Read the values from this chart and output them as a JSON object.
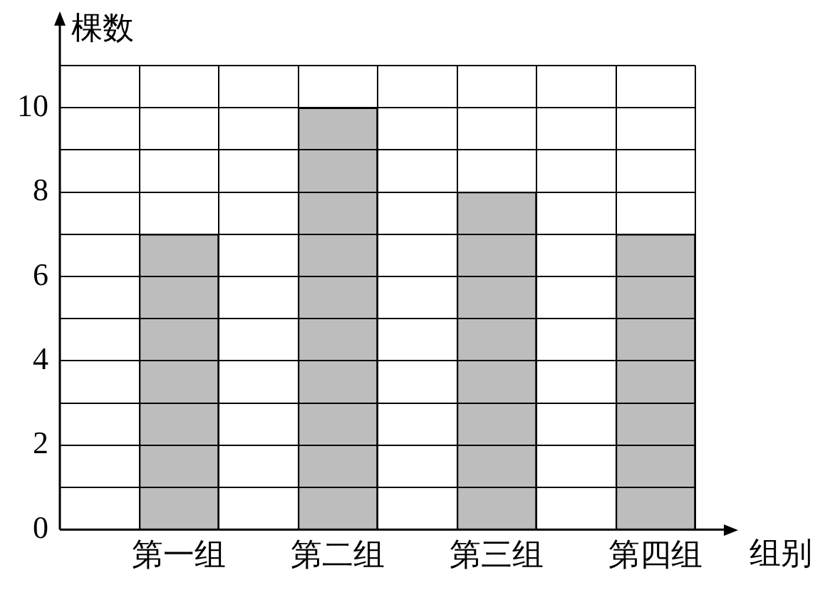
{
  "chart_data": {
    "type": "bar",
    "ylabel": "棵数",
    "xlabel": "组别",
    "categories": [
      null,
      "第一组",
      null,
      "第二组",
      null,
      "第三组",
      null,
      "第四组"
    ],
    "values": [
      null,
      7,
      null,
      10,
      null,
      8,
      null,
      7
    ],
    "color": "#bdbdbd",
    "ylim": [
      0,
      11
    ],
    "yticks": [
      0,
      {
        "value": 1,
        "label": null
      },
      2,
      {
        "value": 3,
        "label": null
      },
      4,
      {
        "value": 5,
        "label": null
      },
      6,
      {
        "value": 7,
        "label": null
      },
      8,
      {
        "value": 9,
        "label": null
      },
      10,
      {
        "value": 11,
        "label": null
      }
    ],
    "grid": true
  }
}
